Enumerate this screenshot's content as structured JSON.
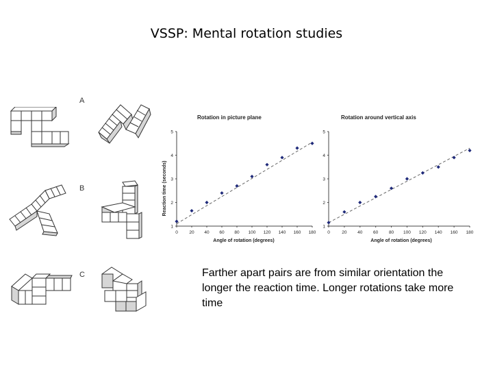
{
  "slide": {
    "title": "VSSP: Mental rotation studies",
    "caption": "Farther apart pairs are from similar orientation the longer the reaction time. Longer rotations take more time"
  },
  "figure": {
    "pair_labels": [
      "A",
      "B",
      "C"
    ]
  },
  "colors": {
    "point": "#1f2a7a",
    "dash": "#666666",
    "axis": "#444444",
    "cube_face": "#ffffff",
    "cube_shadow": "#d6d6d6",
    "cube_edge": "#333333"
  },
  "chart_data": [
    {
      "type": "scatter",
      "title": "Rotation in picture plane",
      "xlabel": "Angle of rotation (degrees)",
      "ylabel": "Reaction time (seconds)",
      "xlim": [
        0,
        180
      ],
      "ylim": [
        1,
        5
      ],
      "x_ticks": [
        0,
        20,
        40,
        60,
        80,
        100,
        120,
        140,
        160,
        180
      ],
      "y_ticks": [
        1,
        2,
        3,
        4,
        5
      ],
      "x": [
        0,
        20,
        40,
        60,
        80,
        100,
        120,
        140,
        160,
        180
      ],
      "values": [
        1.2,
        1.65,
        2.0,
        2.4,
        2.7,
        3.1,
        3.6,
        3.9,
        4.3,
        4.5
      ],
      "trendline": {
        "style": "dashed",
        "from": [
          0,
          1.1
        ],
        "to": [
          180,
          4.55
        ]
      }
    },
    {
      "type": "scatter",
      "title": "Rotation around vertical axis",
      "xlabel": "Angle of rotation (degrees)",
      "ylabel": "",
      "xlim": [
        0,
        180
      ],
      "ylim": [
        1,
        5
      ],
      "x_ticks": [
        0,
        20,
        40,
        60,
        80,
        100,
        120,
        140,
        160,
        180
      ],
      "y_ticks": [
        1,
        2,
        3,
        4,
        5
      ],
      "x": [
        0,
        20,
        40,
        60,
        80,
        100,
        120,
        140,
        160,
        180
      ],
      "values": [
        1.15,
        1.6,
        2.0,
        2.25,
        2.6,
        3.0,
        3.25,
        3.5,
        3.9,
        4.2
      ],
      "trendline": {
        "style": "dashed",
        "from": [
          0,
          1.15
        ],
        "to": [
          180,
          4.3
        ]
      }
    }
  ]
}
